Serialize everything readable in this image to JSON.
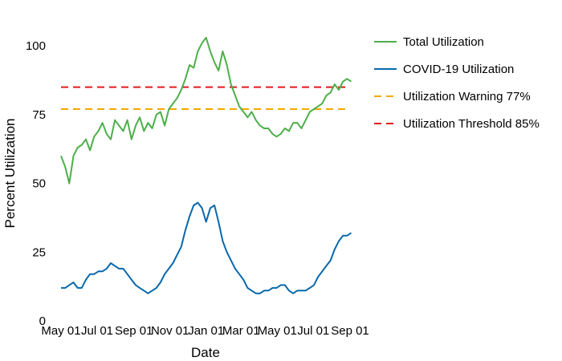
{
  "chart_data": {
    "type": "line",
    "title": "",
    "xlabel": "Date",
    "ylabel": "Percent Utilization",
    "x_ticks": [
      "May 01",
      "Jul 01",
      "Sep 01",
      "Nov 01",
      "Jan 01",
      "Mar 01",
      "May 01",
      "Jul 01",
      "Sep 01"
    ],
    "x_tick_dates": [
      "2020-05-01",
      "2020-07-01",
      "2020-09-01",
      "2020-11-01",
      "2021-01-01",
      "2021-03-01",
      "2021-05-01",
      "2021-07-01",
      "2021-09-01"
    ],
    "xlim": [
      "2020-05-01",
      "2021-09-01"
    ],
    "y_ticks": [
      0,
      25,
      50,
      75,
      100
    ],
    "ylim": [
      0,
      105
    ],
    "grid": false,
    "legend_position": "right",
    "series": [
      {
        "name": "Total Utilization",
        "color": "#4daf4a",
        "style": "solid",
        "x": [
          "2020-05-01",
          "2020-05-08",
          "2020-05-15",
          "2020-05-22",
          "2020-05-29",
          "2020-06-05",
          "2020-06-12",
          "2020-06-19",
          "2020-06-26",
          "2020-07-03",
          "2020-07-10",
          "2020-07-17",
          "2020-07-24",
          "2020-07-31",
          "2020-08-07",
          "2020-08-14",
          "2020-08-21",
          "2020-08-28",
          "2020-09-04",
          "2020-09-11",
          "2020-09-18",
          "2020-09-25",
          "2020-10-02",
          "2020-10-09",
          "2020-10-16",
          "2020-10-23",
          "2020-10-30",
          "2020-11-06",
          "2020-11-13",
          "2020-11-20",
          "2020-11-27",
          "2020-12-04",
          "2020-12-11",
          "2020-12-18",
          "2020-12-25",
          "2021-01-01",
          "2021-01-08",
          "2021-01-15",
          "2021-01-22",
          "2021-01-29",
          "2021-02-05",
          "2021-02-12",
          "2021-02-19",
          "2021-02-26",
          "2021-03-05",
          "2021-03-12",
          "2021-03-19",
          "2021-03-26",
          "2021-04-02",
          "2021-04-09",
          "2021-04-16",
          "2021-04-23",
          "2021-04-30",
          "2021-05-07",
          "2021-05-14",
          "2021-05-21",
          "2021-05-28",
          "2021-06-04",
          "2021-06-11",
          "2021-06-18",
          "2021-06-25",
          "2021-07-02",
          "2021-07-09",
          "2021-07-16",
          "2021-07-23",
          "2021-07-30",
          "2021-08-06",
          "2021-08-13",
          "2021-08-20",
          "2021-08-27",
          "2021-09-03"
        ],
        "y": [
          60,
          56,
          50,
          60,
          63,
          64,
          66,
          62,
          67,
          69,
          72,
          68,
          66,
          73,
          71,
          69,
          73,
          66,
          71,
          74,
          69,
          72,
          70,
          75,
          76,
          71,
          77,
          79,
          81,
          84,
          88,
          93,
          92,
          98,
          101,
          103,
          98,
          94,
          91,
          98,
          93,
          86,
          82,
          78,
          76,
          74,
          76,
          73,
          71,
          70,
          70,
          68,
          67,
          68,
          70,
          69,
          72,
          72,
          70,
          73,
          76,
          77,
          78,
          79,
          82,
          83,
          86,
          84,
          87,
          88,
          87
        ]
      },
      {
        "name": "COVID-19 Utilization",
        "color": "#0868ac",
        "style": "solid",
        "x": [
          "2020-05-01",
          "2020-05-08",
          "2020-05-15",
          "2020-05-22",
          "2020-05-29",
          "2020-06-05",
          "2020-06-12",
          "2020-06-19",
          "2020-06-26",
          "2020-07-03",
          "2020-07-10",
          "2020-07-17",
          "2020-07-24",
          "2020-07-31",
          "2020-08-07",
          "2020-08-14",
          "2020-08-21",
          "2020-08-28",
          "2020-09-04",
          "2020-09-11",
          "2020-09-18",
          "2020-09-25",
          "2020-10-02",
          "2020-10-09",
          "2020-10-16",
          "2020-10-23",
          "2020-10-30",
          "2020-11-06",
          "2020-11-13",
          "2020-11-20",
          "2020-11-27",
          "2020-12-04",
          "2020-12-11",
          "2020-12-18",
          "2020-12-25",
          "2021-01-01",
          "2021-01-08",
          "2021-01-15",
          "2021-01-22",
          "2021-01-29",
          "2021-02-05",
          "2021-02-12",
          "2021-02-19",
          "2021-02-26",
          "2021-03-05",
          "2021-03-12",
          "2021-03-19",
          "2021-03-26",
          "2021-04-02",
          "2021-04-09",
          "2021-04-16",
          "2021-04-23",
          "2021-04-30",
          "2021-05-07",
          "2021-05-14",
          "2021-05-21",
          "2021-05-28",
          "2021-06-04",
          "2021-06-11",
          "2021-06-18",
          "2021-06-25",
          "2021-07-02",
          "2021-07-09",
          "2021-07-16",
          "2021-07-23",
          "2021-07-30",
          "2021-08-06",
          "2021-08-13",
          "2021-08-20",
          "2021-08-27",
          "2021-09-03"
        ],
        "y": [
          12,
          12,
          13,
          14,
          12,
          12,
          15,
          17,
          17,
          18,
          18,
          19,
          21,
          20,
          19,
          19,
          17,
          15,
          13,
          12,
          11,
          10,
          11,
          12,
          14,
          17,
          19,
          21,
          24,
          27,
          33,
          38,
          42,
          43,
          41,
          36,
          41,
          42,
          36,
          29,
          25,
          22,
          19,
          17,
          15,
          12,
          11,
          10,
          10,
          11,
          11,
          12,
          12,
          13,
          13,
          11,
          10,
          11,
          11,
          11,
          12,
          13,
          16,
          18,
          20,
          22,
          26,
          29,
          31,
          31,
          32
        ]
      },
      {
        "name": "Utilization Warning 77%",
        "color": "#f5a800",
        "style": "dashed",
        "value": 77
      },
      {
        "name": "Utilization Threshold 85%",
        "color": "#e31a1c",
        "style": "dashed",
        "value": 85
      }
    ]
  }
}
